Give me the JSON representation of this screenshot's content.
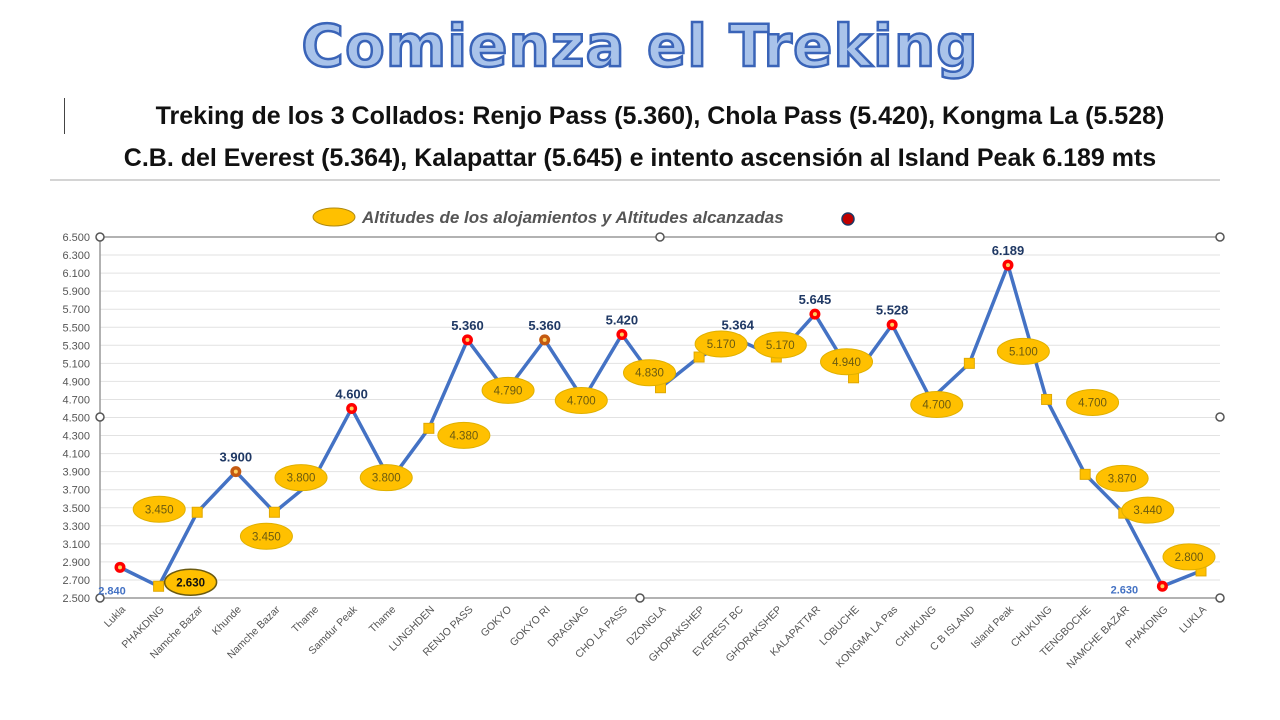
{
  "header": {
    "title": "Comienza el Treking",
    "subtitle_line1": "Treking de los 3 Collados: Renjo Pass (5.360), Chola Pass (5.420), Kongma La (5.528)",
    "subtitle_line2": "C.B. del Everest (5.364), Kalapattar (5.645) e intento ascensión al Island Peak 6.189 mts"
  },
  "chart_data": {
    "type": "line",
    "legend": {
      "text": "Altitudes de los alojamientos y Altitudes alcanzadas",
      "placement": "top-center"
    },
    "ylim": [
      2500,
      6500
    ],
    "yticks": [
      "6.500",
      "6.300",
      "6.100",
      "5.900",
      "5.700",
      "5.500",
      "5.300",
      "5.100",
      "4.900",
      "4.700",
      "4.500",
      "4.300",
      "4.100",
      "3.900",
      "3.700",
      "3.500",
      "3.300",
      "3.100",
      "2.900",
      "2.700",
      "2.500"
    ],
    "grid": true,
    "categories": [
      "Lukla",
      "PHAKDING",
      "Namche Bazar",
      "Khunde",
      "Namche Bazar",
      "Thame",
      "Samdur Peak",
      "Thame",
      "LUNGHDEN",
      "RENJO PASS",
      "GOKYO",
      "GOKYO RI",
      "DRAGNAG",
      "CHO LA PASS",
      "DZONGLA",
      "GHORAKSHEP",
      "EVEREST BC",
      "GHORAKSHEP",
      "KALAPATTAR",
      "LOBUCHE",
      "KONGMA LA Pas",
      "CHUKUNG",
      "C B ISLAND",
      "Island Peak",
      "CHUKUNG",
      "TENGBOCHE",
      "NAMCHE BAZAR",
      "PHAKDING",
      "LUKLA"
    ],
    "values": [
      2840,
      2630,
      3450,
      3900,
      3450,
      3800,
      4600,
      3800,
      4380,
      5360,
      4790,
      5360,
      4700,
      5420,
      4830,
      5170,
      5364,
      5170,
      5645,
      4940,
      5528,
      4700,
      5100,
      6189,
      4700,
      3870,
      3440,
      2630,
      2800
    ],
    "labels": [
      "2.840",
      "2.630",
      "3.450",
      "3.900",
      "3.450",
      "3.800",
      "4.600",
      "3.800",
      "4.380",
      "5.360",
      "4.790",
      "5.360",
      "4.700",
      "5.420",
      "4.830",
      "5.170",
      "5.364",
      "5.170",
      "5.645",
      "4.940",
      "5.528",
      "4.700",
      "5.100",
      "6.189",
      "4.700",
      "3.870",
      "3.440",
      "2.630",
      "2.800"
    ],
    "marker_types": [
      "reached",
      "lodging",
      "lodging",
      "reached-orange",
      "lodging",
      "lodging",
      "reached",
      "lodging",
      "lodging",
      "reached",
      "lodging",
      "reached-orange",
      "lodging",
      "reached",
      "lodging",
      "lodging",
      "reached",
      "lodging",
      "reached",
      "lodging",
      "reached",
      "lodging",
      "lodging",
      "reached",
      "lodging",
      "lodging",
      "lodging",
      "reached",
      "lodging"
    ],
    "colors": {
      "line": "#4472c4",
      "lodging": "#ffc000",
      "reached": "#ff0000",
      "reached_orange": "#c55a11",
      "peak_label": "#1f3864",
      "plain_label": "#4472c4"
    }
  }
}
